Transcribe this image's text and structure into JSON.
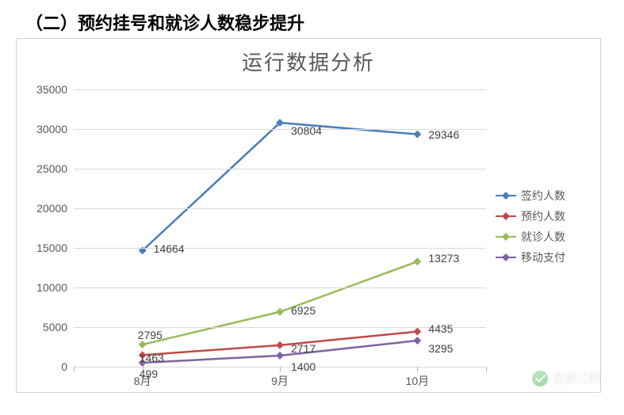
{
  "heading": "（二）预约挂号和就诊人数稳步提升",
  "chart": {
    "type": "line",
    "title": "运行数据分析",
    "title_fontsize": 26,
    "title_color": "#595959",
    "background_color": "#ffffff",
    "border_color": "#c5d3e2",
    "grid_color": "#d9d9d9",
    "label_color": "#595959",
    "label_fontsize": 14,
    "categories": [
      "8月",
      "9月",
      "10月"
    ],
    "ylim": [
      0,
      35000
    ],
    "ytick_step": 5000,
    "yticks": [
      0,
      5000,
      10000,
      15000,
      20000,
      25000,
      30000,
      35000
    ],
    "line_width": 2.5,
    "marker": "diamond",
    "marker_size": 7,
    "series": [
      {
        "name": "签约人数",
        "color": "#4a7ebb",
        "values": [
          14664,
          30804,
          29346
        ]
      },
      {
        "name": "预约人数",
        "color": "#be4b48",
        "values": [
          1463,
          2717,
          4435
        ]
      },
      {
        "name": "就诊人数",
        "color": "#9abb59",
        "values": [
          2795,
          6925,
          13273
        ]
      },
      {
        "name": "移动支付",
        "color": "#7f63a1",
        "values": [
          499,
          1400,
          3295
        ]
      }
    ],
    "legend_position": "right"
  },
  "watermark": {
    "text": "健康江阴"
  }
}
